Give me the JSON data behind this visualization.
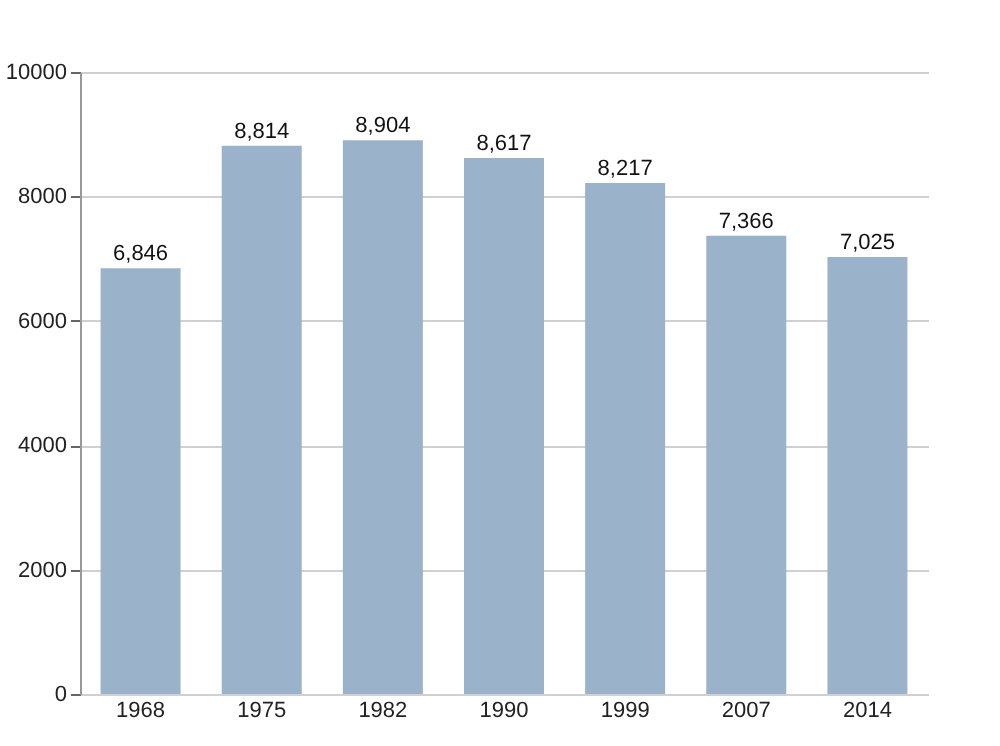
{
  "chart_data": {
    "type": "bar",
    "categories": [
      "1968",
      "1975",
      "1982",
      "1990",
      "1999",
      "2007",
      "2014"
    ],
    "values": [
      6846,
      8814,
      8904,
      8617,
      8217,
      7366,
      7025
    ],
    "value_labels": [
      "6,846",
      "8,814",
      "8,904",
      "8,617",
      "8,217",
      "7,366",
      "7,025"
    ],
    "color": "#9bb2cb",
    "ylim": [
      0,
      10000
    ],
    "yticks": [
      0,
      2000,
      4000,
      6000,
      8000,
      10000
    ],
    "grid": true
  }
}
